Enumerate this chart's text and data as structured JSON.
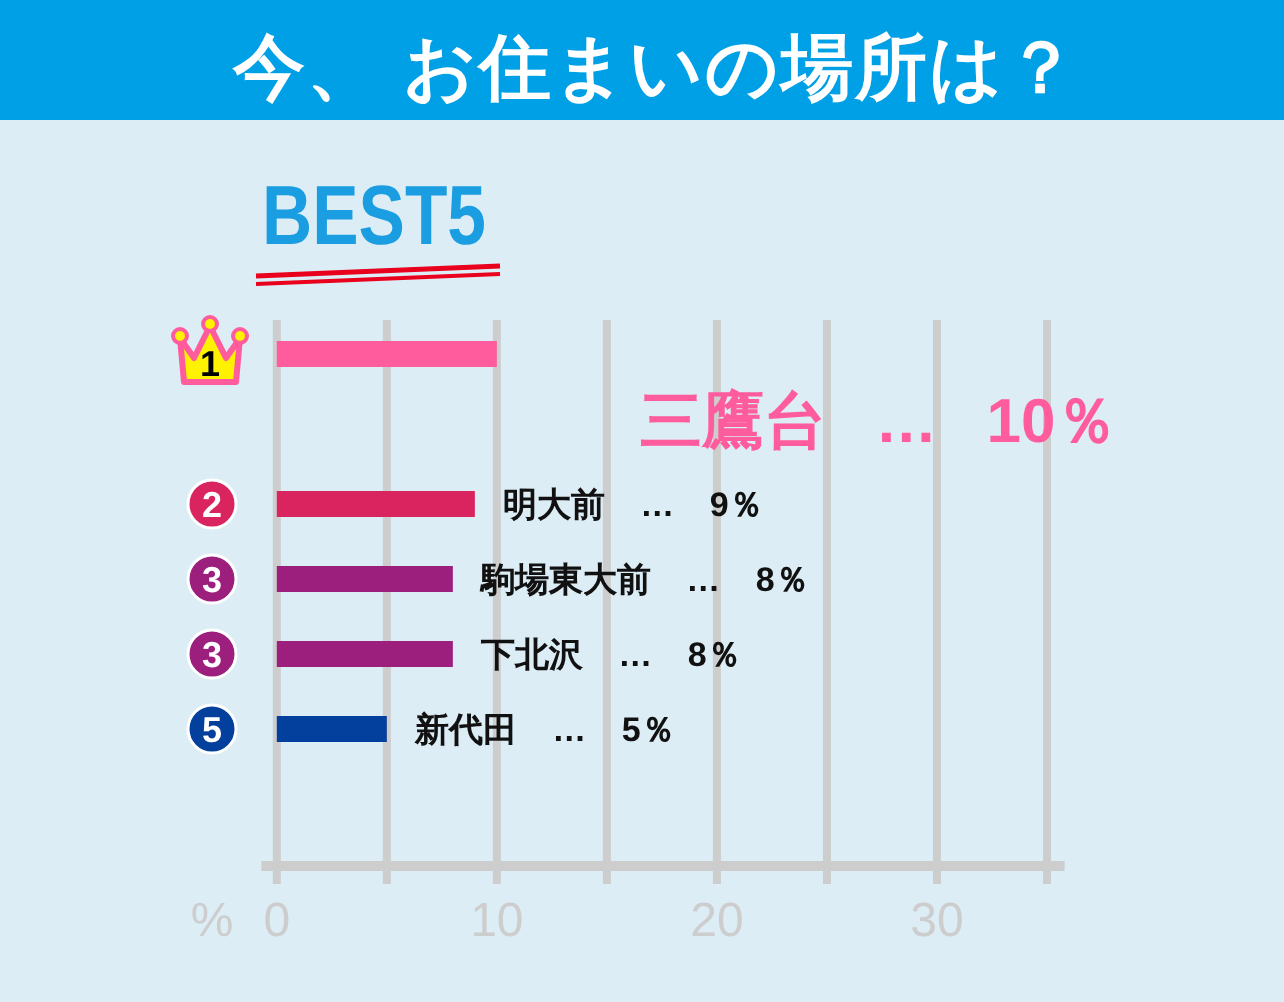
{
  "chart_data": {
    "type": "bar",
    "orientation": "horizontal",
    "title": "今、 お住まいの場所は？",
    "subtitle": "BEST5",
    "xlabel": "%",
    "categories": [
      "1",
      "2",
      "3",
      "3",
      "5"
    ],
    "values": [
      10,
      9,
      8,
      8,
      5
    ],
    "colors": [
      "#ff5c9d",
      "#d9245f",
      "#9c1f7e",
      "#9c1f7e",
      "#033f9c"
    ],
    "value_labels": [
      "三鷹台 … 10％",
      "明大前 … 9％",
      "駒場東大前 … 8％",
      "下北沢 … 8％",
      "新代田 … 5％"
    ],
    "xlim": [
      -0.7,
      35.8
    ],
    "xticks": [
      0,
      {
        "value": 5,
        "label": null
      },
      10,
      {
        "value": 15,
        "label": null
      },
      20,
      {
        "value": 25,
        "label": null
      },
      30,
      {
        "value": 35,
        "label": null
      }
    ],
    "grid": "x"
  }
}
